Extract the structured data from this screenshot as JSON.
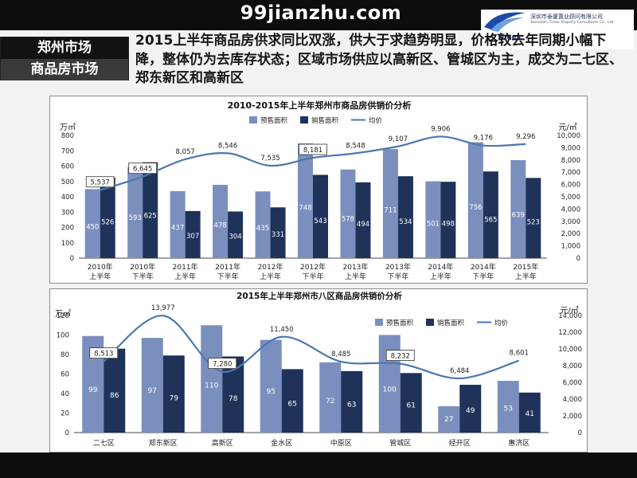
{
  "watermark": "99jianzhu.com",
  "logo": {
    "mark": "Times",
    "name_cn": "深圳市泰厦置业顾问有限公司",
    "name_en": "Shenzhen Times Property Consultants Co., Ltd"
  },
  "section": {
    "line1": "郑州市场",
    "line2": "商品房市场"
  },
  "headline": "2015上半年商品房供求同比双涨，供大于求趋势明显，价格较去年同期小幅下降，整体仍为去库存状态；区域市场供应以高新区、管城区为主，成交为二七区、郑东新区和高新区",
  "colors": {
    "supply": "#7b8fbe",
    "sales": "#1f3259",
    "price": "#4a78b0",
    "background": "#f2f2f2",
    "band": "#0d0d0d"
  },
  "chart_data": [
    {
      "type": "bar",
      "title": "2010-2015年上半年郑州市商品房供销价分析",
      "categories": [
        [
          "2010年",
          "上半年"
        ],
        [
          "2010年",
          "下半年"
        ],
        [
          "2011年",
          "上半年"
        ],
        [
          "2011年",
          "下半年"
        ],
        [
          "2012年",
          "上半年"
        ],
        [
          "2012年",
          "下半年"
        ],
        [
          "2013年",
          "上半年"
        ],
        [
          "2013年",
          "下半年"
        ],
        [
          "2014年",
          "上半年"
        ],
        [
          "2014年",
          "下半年"
        ],
        [
          "2015年",
          "上半年"
        ]
      ],
      "series": [
        {
          "name": "预售面积",
          "kind": "bar",
          "axis": "left",
          "values": [
            450,
            593,
            437,
            478,
            435,
            748,
            578,
            711,
            501,
            756,
            639
          ]
        },
        {
          "name": "销售面积",
          "kind": "bar",
          "axis": "left",
          "values": [
            526,
            625,
            307,
            304,
            331,
            543,
            494,
            534,
            498,
            565,
            523
          ]
        },
        {
          "name": "均价",
          "kind": "line",
          "axis": "right",
          "values": [
            5537,
            6645,
            8057,
            8546,
            7535,
            8181,
            8548,
            9107,
            9906,
            9176,
            9296
          ]
        }
      ],
      "ylabel_left": "万㎡",
      "ylabel_right": "元/㎡",
      "ylim_left": [
        0,
        800
      ],
      "yticks_left": [
        0,
        100,
        200,
        300,
        400,
        500,
        600,
        700,
        800
      ],
      "ylim_right": [
        0,
        10000
      ],
      "yticks_right": [
        "0",
        "1,000",
        "2,000",
        "3,000",
        "4,000",
        "5,000",
        "6,000",
        "7,000",
        "8,000",
        "9,000",
        "10,000"
      ],
      "price_labels": [
        "5,537",
        "6,645",
        "8,057",
        "8,546",
        "7,535",
        "8,181",
        "8,548",
        "9,107",
        "9,906",
        "9,176",
        "9,296"
      ],
      "boxed_labels": [
        0,
        1,
        5
      ],
      "legend": "top-center",
      "grid": false
    },
    {
      "type": "bar",
      "title": "2015年上半年郑州市八区商品房供销价分析",
      "categories": [
        [
          "二七区"
        ],
        [
          "郑东新区"
        ],
        [
          "高新区"
        ],
        [
          "金水区"
        ],
        [
          "中原区"
        ],
        [
          "管城区"
        ],
        [
          "经开区"
        ],
        [
          "惠济区"
        ]
      ],
      "series": [
        {
          "name": "预售面积",
          "kind": "bar",
          "axis": "left",
          "values": [
            99,
            97,
            110,
            95,
            72,
            100,
            27,
            53
          ]
        },
        {
          "name": "销售面积",
          "kind": "bar",
          "axis": "left",
          "values": [
            86,
            79,
            78,
            65,
            63,
            61,
            49,
            41
          ]
        },
        {
          "name": "均价",
          "kind": "line",
          "axis": "right",
          "values": [
            8513,
            13977,
            7280,
            11450,
            8485,
            8232,
            6484,
            8601
          ]
        }
      ],
      "ylabel_left": "万㎡",
      "ylabel_right": "元/㎡",
      "ylim_left": [
        0,
        120
      ],
      "yticks_left": [
        0,
        20,
        40,
        60,
        80,
        100,
        120
      ],
      "ylim_right": [
        0,
        14000
      ],
      "yticks_right": [
        "0",
        "2,000",
        "4,000",
        "6,000",
        "8,000",
        "10,000",
        "12,000",
        "14,000"
      ],
      "price_labels": [
        "8,513",
        "13,977",
        "7,280",
        "11,450",
        "8,485",
        "8,232",
        "6,484",
        "8,601"
      ],
      "boxed_labels": [
        0,
        2,
        5
      ],
      "legend": "top-right",
      "grid": false
    }
  ]
}
